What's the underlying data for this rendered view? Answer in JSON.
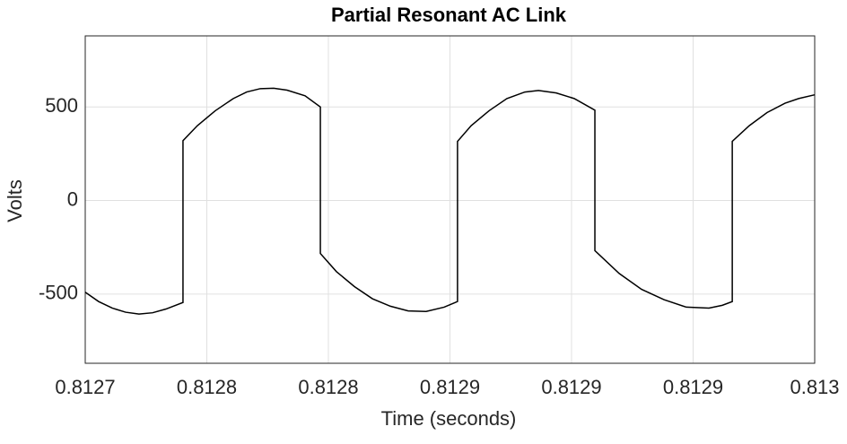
{
  "chart_data": {
    "type": "line",
    "title": "Partial Resonant AC Link",
    "xlabel": "Time (seconds)",
    "ylabel": "Volts",
    "x": [
      0.8127,
      0.8127055,
      0.8127111,
      0.8127166,
      0.8127221,
      0.8127277,
      0.8127332,
      0.8127402,
      0.8127402,
      0.8127461,
      0.8127535,
      0.8127609,
      0.8127664,
      0.812772,
      0.8127775,
      0.812783,
      0.8127904,
      0.8127967,
      0.8127967,
      0.8128033,
      0.8128107,
      0.8128181,
      0.8128255,
      0.8128328,
      0.8128402,
      0.8128476,
      0.8128531,
      0.8128531,
      0.8128587,
      0.8128661,
      0.8128734,
      0.8128808,
      0.8128864,
      0.8128937,
      0.8129011,
      0.8129096,
      0.8129096,
      0.8129196,
      0.8129288,
      0.812938,
      0.8129472,
      0.8129565,
      0.812962,
      0.8129661,
      0.8129661,
      0.8129731,
      0.8129804,
      0.8129878,
      0.8129934,
      0.813
    ],
    "series": [
      {
        "name": "Volts",
        "color": "#000000",
        "values": [
          -490,
          -540,
          -575,
          -597,
          -607,
          -600,
          -580,
          -545,
          320,
          400,
          480,
          545,
          580,
          598,
          600,
          590,
          560,
          500,
          -283,
          -380,
          -460,
          -525,
          -565,
          -590,
          -593,
          -570,
          -540,
          316,
          400,
          480,
          545,
          580,
          588,
          575,
          545,
          483,
          -268,
          -390,
          -475,
          -530,
          -570,
          -575,
          -560,
          -540,
          316,
          400,
          470,
          520,
          545,
          565
        ]
      }
    ],
    "xlim": [
      0.8127,
      0.813
    ],
    "xticks": [
      0.8127,
      {
        "value": 0.81275,
        "label": "0.8128"
      },
      {
        "value": 0.8128,
        "label": "0.8128"
      },
      {
        "value": 0.81285,
        "label": "0.8129"
      },
      {
        "value": 0.8129,
        "label": "0.8129"
      },
      {
        "value": 0.81295,
        "label": "0.8129"
      },
      0.813
    ],
    "ylim": [
      -870,
      880
    ],
    "yticks": [
      -500,
      0,
      500
    ],
    "grid": true
  }
}
